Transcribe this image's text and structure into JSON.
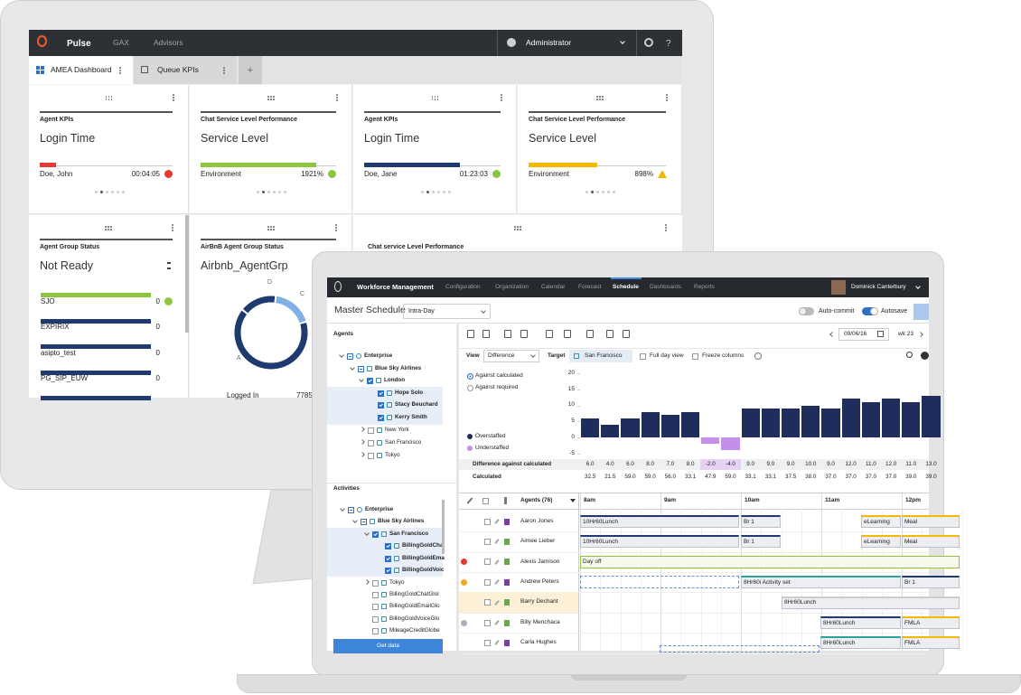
{
  "pulse": {
    "brand": "Pulse",
    "nav": [
      "GAX",
      "Advisors"
    ],
    "user": "Administrator",
    "help": "?",
    "tabs": [
      "AMEA Dashboard",
      "Queue KPIs"
    ],
    "add_tab": "+",
    "kpi_widgets": [
      {
        "category": "Agent KPIs",
        "title": "Login Time",
        "name": "Doe, John",
        "value": "00:04:05"
      },
      {
        "category": "Chat Service Level Performance",
        "title": "Service Level",
        "name": "Environment",
        "value": "1921%"
      },
      {
        "category": "Agent KPIs",
        "title": "Login Time",
        "name": "Doe, Jane",
        "value": "01:23:03"
      },
      {
        "category": "Chat Service Level Performance",
        "title": "Service Level",
        "name": "Environment",
        "value": "898%"
      }
    ],
    "group_widget": {
      "category": "Agent Group Status",
      "title": "Not Ready",
      "rows": [
        {
          "label": "SJO",
          "value": 0
        },
        {
          "label": "EXPIRIX",
          "value": 0
        },
        {
          "label": "asipto_test",
          "value": 0
        },
        {
          "label": "PG_SIP_EUW",
          "value": 0
        }
      ]
    },
    "donut_widget": {
      "category": "AirBnB Agent Group Status",
      "title": "Airbnb_AgentGrp",
      "segments": [
        "D",
        "C",
        "A"
      ],
      "metric": "Logged In",
      "metric_value": "7785"
    },
    "chat_widget": {
      "category": "Chat service Level Performance"
    }
  },
  "wfm": {
    "nav": {
      "brand": "Workforce Management",
      "links": [
        "Configuration",
        "Organization",
        "Calendar",
        "Forecast",
        "Schedule",
        "Dashboards",
        "Reports"
      ],
      "user": "Dominick Canterbury"
    },
    "title": "Master Schedule",
    "view_mode": "Intra-Day",
    "toggles": [
      "Auto-commit",
      "Autosave"
    ],
    "agents_panel": {
      "title": "Agents",
      "tree": [
        "Enterprise",
        "Blue Sky Airlines",
        "London",
        "Hope Solo",
        "Stacy Beuchard",
        "Kerry Smith",
        "New York",
        "San Francisco",
        "Tokyo"
      ]
    },
    "activities_panel": {
      "title": "Activities",
      "tree": [
        "Enterprise",
        "Blue Sky Airlines",
        "San Francisco",
        "BillingGoldCha",
        "BillingGoldEma",
        "BillingGoldVoic",
        "Tokyo",
        "BillingGoldChatGlol",
        "BillingGoldEmailGlo",
        "BillingGoldVoiceGlo",
        "MileageCreditGlobe"
      ]
    },
    "get_data": "Get data",
    "toolbar": {
      "date": "09/06/16",
      "week": "wk 23",
      "view_label": "View",
      "view": "Difference",
      "target_label": "Target",
      "target": "San Francisco",
      "options": [
        "Full day view",
        "Freeze columns"
      ]
    },
    "chart": {
      "type": "bar",
      "modes": [
        "Against calculated",
        "Against required"
      ],
      "legend": [
        {
          "name": "Overstaffed",
          "color": "#1f2d5c"
        },
        {
          "name": "Understaffed",
          "color": "#c48ee9"
        }
      ],
      "ylim": [
        -5,
        20
      ],
      "yticks": [
        20,
        15,
        10,
        5,
        0,
        -5
      ],
      "row_labels": [
        "Difference against calculated",
        "Calculated"
      ],
      "values": [
        6,
        4,
        6,
        8,
        7,
        8,
        -2,
        -4,
        9,
        9,
        9,
        10,
        9,
        12,
        11,
        12,
        11,
        13
      ],
      "value_labels": [
        "6.0",
        "4.0",
        "6.0",
        "8.0",
        "7.0",
        "8.0",
        "-2.0",
        "-4.0",
        "9.0",
        "9.0",
        "9.0",
        "10.0",
        "9.0",
        "12.0",
        "11.0",
        "12.0",
        "11.0",
        "13.0"
      ],
      "calculated": [
        "32.5",
        "21.5",
        "59.0",
        "59.0",
        "56.0",
        "33.1",
        "47.9",
        "59.0",
        "33.1",
        "33.1",
        "37.5",
        "38.0",
        "37.0",
        "37.0",
        "37.0",
        "37.0",
        "39.0",
        "39.0"
      ]
    },
    "timeline": {
      "agents_header": "Agents (76)",
      "hours": [
        "8am",
        "9am",
        "10am",
        "11am",
        "12pm"
      ],
      "agents": [
        {
          "name": "Aaron Jones",
          "activities": [
            "10Hr60Lunch",
            "Br 1",
            "eLearning",
            "Meal"
          ]
        },
        {
          "name": "Aimee Lieber",
          "activities": [
            "10Hr60Lunch",
            "Br 1",
            "eLearning",
            "Meal"
          ]
        },
        {
          "name": "Alexis Jamison",
          "activities": [
            "Day off"
          ]
        },
        {
          "name": "Andrew Peters",
          "activities": [
            "8Hr60i Activity set",
            "Br 1"
          ]
        },
        {
          "name": "Barry Dechant",
          "activities": [
            "8Hr60Lunch"
          ]
        },
        {
          "name": "Billy Menchaca",
          "activities": [
            "8Hr60Lunch",
            "FMLA"
          ]
        },
        {
          "name": "Carla Hughes",
          "activities": [
            "8Hr60Lunch",
            "FMLA"
          ]
        }
      ]
    }
  }
}
